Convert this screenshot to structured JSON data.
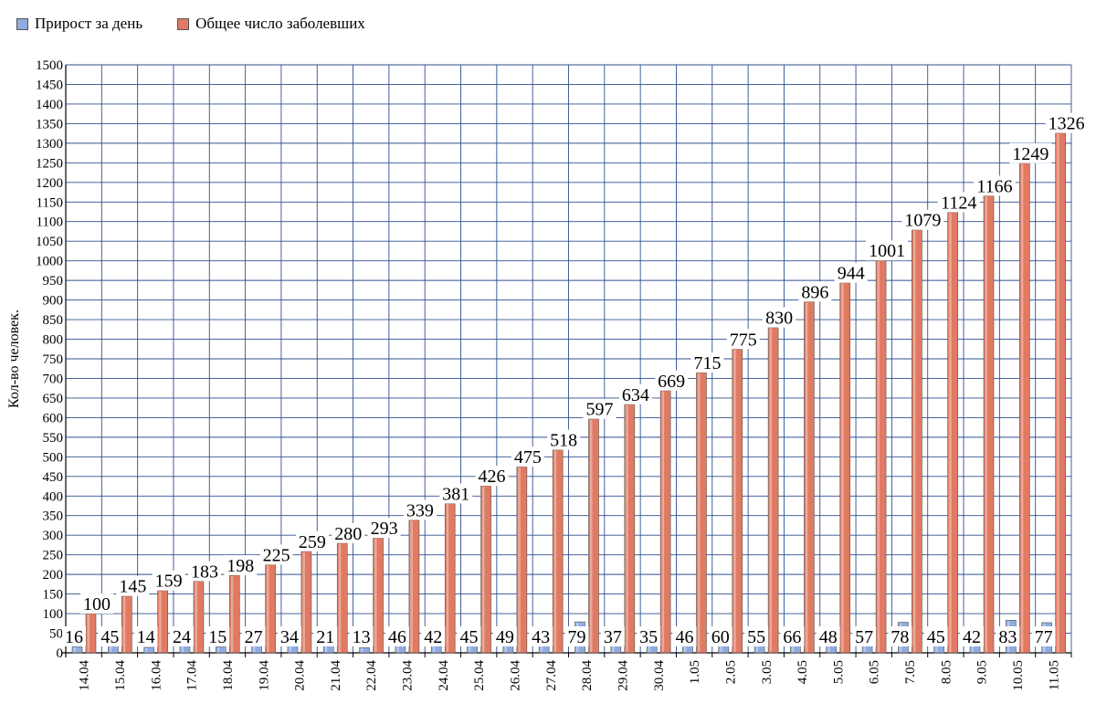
{
  "colors": {
    "daily": "#8fabe0",
    "total": "#e07a62",
    "grid": "#2f4f8f"
  },
  "chart_data": {
    "type": "bar",
    "categories": [
      "14.04",
      "15.04",
      "16.04",
      "17.04",
      "18.04",
      "19.04",
      "20.04",
      "21.04",
      "22.04",
      "23.04",
      "24.04",
      "25.04",
      "26.04",
      "27.04",
      "28.04",
      "29.04",
      "30.04",
      "1.05",
      "2.05",
      "3.05",
      "4.05",
      "5.05",
      "6.05",
      "7.05",
      "8.05",
      "9.05",
      "10.05",
      "11.05"
    ],
    "series": [
      {
        "name": "Прирост за день",
        "values": [
          16,
          45,
          14,
          24,
          15,
          27,
          34,
          21,
          13,
          46,
          42,
          45,
          49,
          43,
          79,
          37,
          35,
          46,
          60,
          55,
          66,
          48,
          57,
          78,
          45,
          42,
          83,
          77
        ]
      },
      {
        "name": "Общее число заболевших",
        "values": [
          100,
          145,
          159,
          183,
          198,
          225,
          259,
          280,
          293,
          339,
          381,
          426,
          475,
          518,
          597,
          634,
          669,
          715,
          775,
          830,
          896,
          944,
          1001,
          1079,
          1124,
          1166,
          1249,
          1326
        ]
      }
    ],
    "ylabel": "Кол-во человек.",
    "xlabel": "",
    "ylim": [
      0,
      1500
    ],
    "ytick_step": 50,
    "grid": true,
    "legend_position": "top-left"
  }
}
